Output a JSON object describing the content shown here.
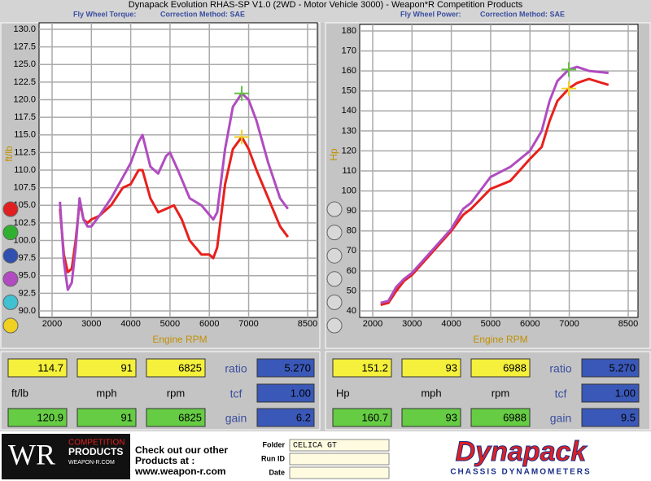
{
  "window_title": "Dynapack Evolution RHAS-SP V1.0 (2WD - Motor Vehicle 3000) - Weapon*R Competition Products",
  "chart_data": [
    {
      "type": "line",
      "subtitle": "Fly Wheel Torque:",
      "correction": "Correction Method: SAE",
      "x_label": "Engine RPM",
      "y_label": "ft/lb",
      "xlim": [
        2000,
        8500
      ],
      "xticks": [
        2000,
        3000,
        4000,
        5000,
        6000,
        7000,
        8500
      ],
      "ylim": [
        90,
        130
      ],
      "yticks": [
        {
          "value": 90,
          "label": "90.0"
        },
        {
          "value": 92.5,
          "label": "92.5"
        },
        {
          "value": 95,
          "label": "95.0"
        },
        {
          "value": 97.5,
          "label": "97.5"
        },
        {
          "value": 100,
          "label": "100.0"
        },
        {
          "value": 102.5,
          "label": "102.5"
        },
        {
          "value": 105,
          "label": "105.0"
        },
        {
          "value": 107.5,
          "label": "107.5"
        },
        {
          "value": 110,
          "label": "110.0"
        },
        {
          "value": 112.5,
          "label": "112.5"
        },
        {
          "value": 115,
          "label": "115.0"
        },
        {
          "value": 117.5,
          "label": "117.5"
        },
        {
          "value": 120,
          "label": "120.0"
        },
        {
          "value": 122.5,
          "label": "122.5"
        },
        {
          "value": 125,
          "label": "125.0"
        },
        {
          "value": 127.5,
          "label": "127.5"
        },
        {
          "value": 130,
          "label": "130.0"
        }
      ],
      "grid": true,
      "series": [
        {
          "color": "#e8201c",
          "x": [
            2200,
            2300,
            2400,
            2500,
            2600,
            2700,
            2800,
            2900,
            3000,
            3200,
            3500,
            3800,
            4000,
            4200,
            4300,
            4500,
            4700,
            4900,
            5100,
            5300,
            5500,
            5800,
            6000,
            6100,
            6200,
            6400,
            6600,
            6825,
            7000,
            7200,
            7500,
            7800,
            8000
          ],
          "values": [
            104.5,
            98,
            95.5,
            96,
            100,
            105.5,
            103,
            102.5,
            103,
            103.5,
            105,
            107.5,
            108,
            110,
            110,
            106,
            104,
            104.5,
            105,
            103,
            100,
            98,
            98,
            97.5,
            99,
            108,
            113,
            114.7,
            113,
            110,
            106,
            102,
            100.5
          ]
        },
        {
          "color": "#b04cc0",
          "x": [
            2200,
            2300,
            2400,
            2500,
            2600,
            2700,
            2800,
            2900,
            3000,
            3200,
            3500,
            3800,
            4000,
            4200,
            4300,
            4500,
            4700,
            4900,
            5000,
            5200,
            5500,
            5800,
            6100,
            6200,
            6400,
            6600,
            6825,
            7000,
            7200,
            7500,
            7800,
            8000
          ],
          "values": [
            105.5,
            97,
            93,
            94,
            99,
            106,
            103,
            102,
            102,
            103.5,
            106,
            109,
            111,
            114,
            115,
            110.5,
            109.5,
            112,
            112.5,
            110,
            106,
            105,
            103,
            104,
            113,
            119,
            120.9,
            120,
            117,
            111,
            106,
            104.5
          ]
        }
      ]
    },
    {
      "type": "line",
      "subtitle": "Fly Wheel Power:",
      "correction": "Correction Method: SAE",
      "x_label": "Engine RPM",
      "y_label": "Hp",
      "xlim": [
        2000,
        8500
      ],
      "xticks": [
        2000,
        3000,
        4000,
        5000,
        6000,
        7000,
        8500
      ],
      "ylim": [
        40,
        180
      ],
      "yticks": [
        40,
        50,
        60,
        70,
        80,
        90,
        100,
        110,
        120,
        130,
        140,
        150,
        160,
        170,
        180
      ],
      "grid": true,
      "series": [
        {
          "color": "#e8201c",
          "x": [
            2200,
            2400,
            2600,
            2800,
            3000,
            3500,
            4000,
            4300,
            4500,
            5000,
            5500,
            6000,
            6300,
            6500,
            6700,
            6988,
            7200,
            7500,
            8000
          ],
          "values": [
            43,
            44,
            50,
            55,
            58,
            69,
            80,
            88,
            91,
            101,
            105,
            116,
            122,
            135,
            145,
            151.2,
            154,
            156,
            153
          ]
        },
        {
          "color": "#b04cc0",
          "x": [
            2200,
            2400,
            2600,
            2800,
            3000,
            3500,
            4000,
            4300,
            4500,
            5000,
            5500,
            6000,
            6300,
            6500,
            6700,
            6988,
            7200,
            7500,
            8000
          ],
          "values": [
            44,
            45,
            52,
            56,
            59,
            70,
            81,
            91,
            94,
            107,
            112,
            120,
            130,
            145,
            155,
            160.7,
            162,
            160,
            159
          ]
        }
      ]
    }
  ],
  "readouts": [
    {
      "top": [
        "114.7",
        "91",
        "6825"
      ],
      "labels": [
        "ft/lb",
        "mph",
        "rpm"
      ],
      "bottom": [
        "120.9",
        "91",
        "6825"
      ],
      "ratio_label": "ratio",
      "ratio": "5.270",
      "tcf_label": "tcf",
      "tcf": "1.00",
      "gain_label": "gain",
      "gain": "6.2"
    },
    {
      "top": [
        "151.2",
        "93",
        "6988"
      ],
      "labels": [
        "Hp",
        "mph",
        "rpm"
      ],
      "bottom": [
        "160.7",
        "93",
        "6988"
      ],
      "ratio_label": "ratio",
      "ratio": "5.270",
      "tcf_label": "tcf",
      "tcf": "1.00",
      "gain_label": "gain",
      "gain": "9.5"
    }
  ],
  "footer": {
    "logo": "WR",
    "logo_line1": "COMPETITION",
    "logo_line2": "PRODUCTS",
    "logo_url": "WEAPON-R.COM",
    "promo": "Check out our other",
    "promo2": "Products at :",
    "url": "www.weapon-r.com",
    "folder_label": "Folder",
    "folder": "CELICA GT",
    "run_label": "Run ID",
    "date_label": "Date",
    "brand": "Dynapack",
    "brand_sub": "CHASSIS DYNAMOMETERS"
  }
}
